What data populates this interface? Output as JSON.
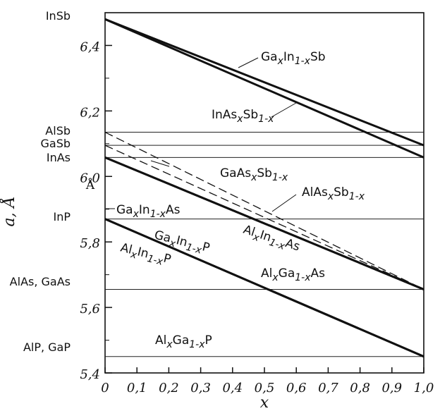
{
  "chart_data": {
    "type": "line",
    "xlabel": "x",
    "ylabel": "a, Å",
    "ylabel_unit": "Å",
    "xlim": [
      0,
      1.0
    ],
    "ylim": [
      5.4,
      6.5
    ],
    "x_ticks": [
      "0",
      "0,1",
      "0,2",
      "0,3",
      "0,4",
      "0,5",
      "0,6",
      "0,7",
      "0,8",
      "0,9",
      "1,0"
    ],
    "x_tick_values": [
      0,
      0.1,
      0.2,
      0.3,
      0.4,
      0.5,
      0.6,
      0.7,
      0.8,
      0.9,
      1.0
    ],
    "y_ticks": [
      "5,4",
      "5,6",
      "5,8",
      "6,0",
      "6,2",
      "6,4"
    ],
    "y_tick_values": [
      5.4,
      5.6,
      5.8,
      6.0,
      6.2,
      6.4
    ],
    "reference_levels": [
      {
        "name": "InSb",
        "value": 6.48
      },
      {
        "name": "AlSb",
        "value": 6.135
      },
      {
        "name": "GaSb",
        "value": 6.095
      },
      {
        "name": "InAs",
        "value": 6.058
      },
      {
        "name": "InP",
        "value": 5.87
      },
      {
        "name": "AlAs, GaAs",
        "value": 5.655
      },
      {
        "name": "AlP, GaP",
        "value": 5.45
      }
    ],
    "series": [
      {
        "name": "GaxIn1-xSb",
        "style": "solid",
        "x": [
          0,
          1
        ],
        "y": [
          6.48,
          6.095
        ]
      },
      {
        "name": "InAsxSb1-x",
        "style": "solid",
        "x": [
          0,
          1
        ],
        "y": [
          6.48,
          6.058
        ]
      },
      {
        "name": "GaAsxSb1-x",
        "style": "dashed",
        "x": [
          0,
          1
        ],
        "y": [
          6.095,
          5.655
        ]
      },
      {
        "name": "AlAsxSb1-x",
        "style": "dashed",
        "x": [
          0,
          1
        ],
        "y": [
          6.135,
          5.655
        ]
      },
      {
        "name": "GaxIn1-xAs",
        "style": "solid",
        "x": [
          0,
          1
        ],
        "y": [
          6.058,
          5.655
        ]
      },
      {
        "name": "AlxIn1-xAs",
        "style": "solid",
        "x": [
          0,
          1
        ],
        "y": [
          6.058,
          5.655
        ]
      },
      {
        "name": "AlxGa1-xAs",
        "style": "solid",
        "x": [
          0,
          1
        ],
        "y": [
          5.655,
          5.655
        ]
      },
      {
        "name": "GaxIn1-xP",
        "style": "solid",
        "x": [
          0,
          1
        ],
        "y": [
          5.87,
          5.45
        ]
      },
      {
        "name": "AlxIn1-xP",
        "style": "solid",
        "x": [
          0,
          1
        ],
        "y": [
          5.87,
          5.45
        ]
      },
      {
        "name": "AlxGa1-xP",
        "style": "solid",
        "x": [
          0,
          1
        ],
        "y": [
          5.45,
          5.45
        ]
      }
    ],
    "annotations": [
      {
        "base": "Ga",
        "sub": "x",
        "mid": "In",
        "sub2": "1-x",
        "end": "Sb"
      },
      {
        "base": "InAs",
        "sub": "x",
        "mid": "Sb",
        "sub2": "1-x",
        "end": ""
      },
      {
        "base": "GaAs",
        "sub": "x",
        "mid": "Sb",
        "sub2": "1-x",
        "end": ""
      },
      {
        "base": "AlAs",
        "sub": "x",
        "mid": "Sb",
        "sub2": "1-x",
        "end": ""
      },
      {
        "base": "Ga",
        "sub": "x",
        "mid": "In",
        "sub2": "1-x",
        "end": "As"
      },
      {
        "base": "Ga",
        "sub": "x",
        "mid": "In",
        "sub2": "1-x",
        "end": "P"
      },
      {
        "base": "Al",
        "sub": "x",
        "mid": "In",
        "sub2": "1-x",
        "end": "P"
      },
      {
        "base": "Al",
        "sub": "x",
        "mid": "In",
        "sub2": "1-x",
        "end": "As"
      },
      {
        "base": "Al",
        "sub": "x",
        "mid": "Ga",
        "sub2": "1-x",
        "end": "As"
      },
      {
        "base": "Al",
        "sub": "x",
        "mid": "Ga",
        "sub2": "1-x",
        "end": "P"
      }
    ]
  }
}
